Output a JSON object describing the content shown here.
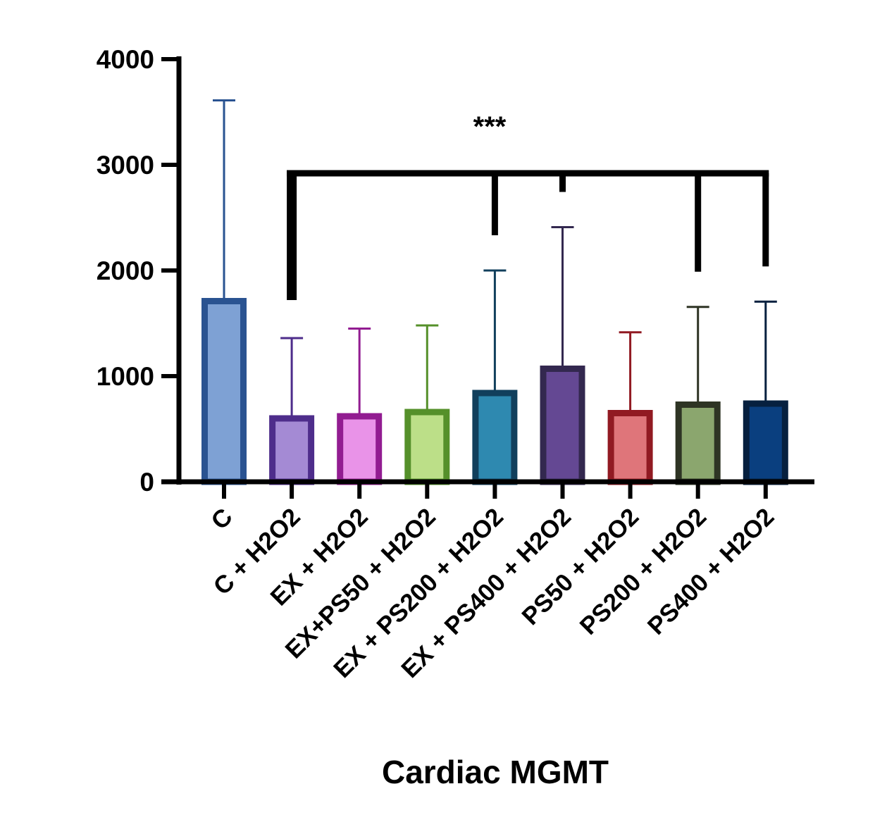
{
  "chart_data": {
    "type": "bar",
    "title": "Cardiac MGMT",
    "xlabel": "Cardiac MGMT",
    "ylabel": "",
    "ylim": [
      0,
      4000
    ],
    "yticks": [
      0,
      1000,
      2000,
      3000,
      4000
    ],
    "ytick_labels": [
      "0",
      "1000",
      "2000",
      "3000",
      "4000"
    ],
    "grid": false,
    "legend": "none",
    "categories": [
      "C",
      "C + H2O2",
      "EX + H2O2",
      "EX+PS50 + H2O2",
      "EX + PS200 + H2O2",
      "EX + PS400 + H2O2",
      "PS50 + H2O2",
      "PS200 + H2O2",
      "PS400 + H2O2"
    ],
    "values": [
      1710,
      600,
      620,
      660,
      840,
      1070,
      650,
      730,
      740
    ],
    "error_upper": [
      3610,
      1360,
      1450,
      1480,
      2000,
      2410,
      1415,
      1655,
      1705
    ],
    "fill_colors": [
      "#7ea1d4",
      "#a48ad4",
      "#e993e8",
      "#bcdf88",
      "#2e89b0",
      "#644893",
      "#df757a",
      "#8ba66e",
      "#0a3f7f"
    ],
    "edge_colors": [
      "#2a5391",
      "#4e2d8b",
      "#921c91",
      "#55902a",
      "#113f5c",
      "#33284f",
      "#911a22",
      "#2e3424",
      "#06203f"
    ],
    "significance": {
      "label": "***",
      "reference": "C + H2O2",
      "compared": [
        "EX + PS200 + H2O2",
        "EX + PS400 + H2O2",
        "PS200 + H2O2",
        "PS400 + H2O2"
      ]
    }
  }
}
